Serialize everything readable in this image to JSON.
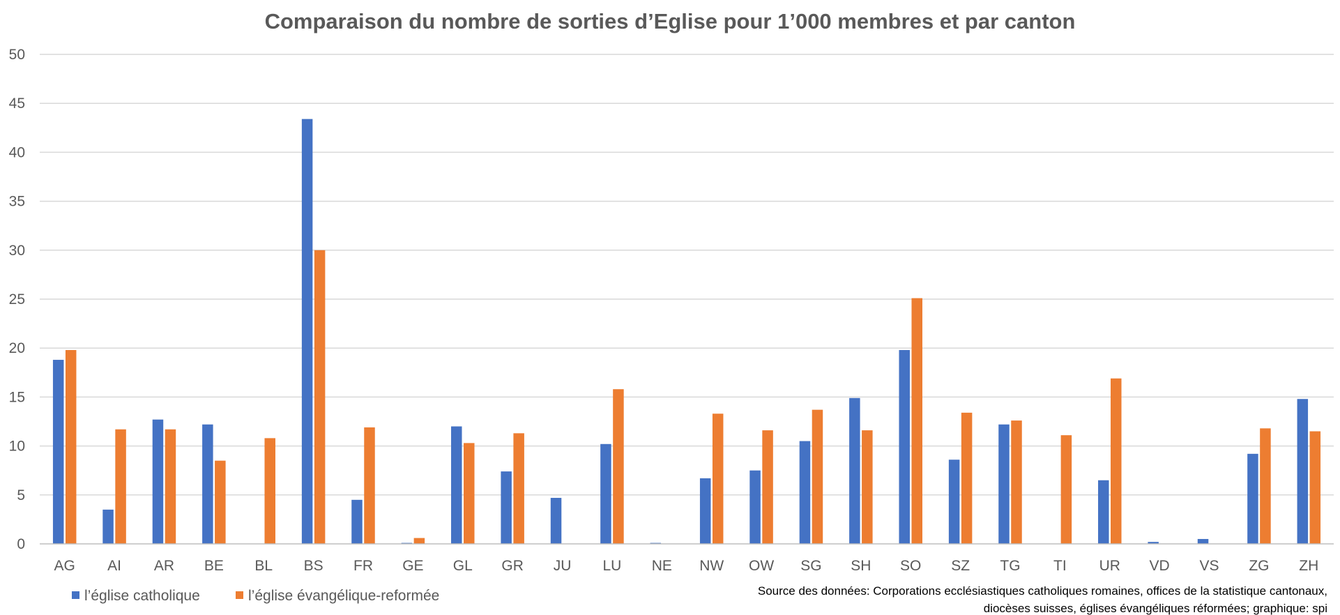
{
  "chart_data": {
    "type": "bar",
    "title": "Comparaison du nombre de sorties d’Eglise pour 1’000 membres et par canton",
    "xlabel": "",
    "ylabel": "",
    "ylim": [
      0,
      50
    ],
    "yticks": [
      0,
      5,
      10,
      15,
      20,
      25,
      30,
      35,
      40,
      45,
      50
    ],
    "grid": true,
    "legend_position": "bottom-left",
    "categories": [
      "AG",
      "AI",
      "AR",
      "BE",
      "BL",
      "BS",
      "FR",
      "GE",
      "GL",
      "GR",
      "JU",
      "LU",
      "NE",
      "NW",
      "OW",
      "SG",
      "SH",
      "SO",
      "SZ",
      "TG",
      "TI",
      "UR",
      "VD",
      "VS",
      "ZG",
      "ZH"
    ],
    "series": [
      {
        "name": "l’église catholique",
        "color": "#4472c4",
        "values": [
          18.8,
          3.5,
          12.7,
          12.2,
          0,
          43.4,
          4.5,
          0.1,
          12.0,
          7.4,
          4.7,
          10.2,
          0.1,
          6.7,
          7.5,
          10.5,
          14.9,
          19.8,
          8.6,
          12.2,
          0,
          6.5,
          0.2,
          0.5,
          9.2,
          14.8
        ]
      },
      {
        "name": "l’église évangélique-reformée",
        "color": "#ed7d31",
        "values": [
          19.8,
          11.7,
          11.7,
          8.5,
          10.8,
          30.0,
          11.9,
          0.6,
          10.3,
          11.3,
          0,
          15.8,
          0,
          13.3,
          11.6,
          13.7,
          11.6,
          25.1,
          13.4,
          12.6,
          11.1,
          16.9,
          0,
          0,
          11.8,
          11.5
        ]
      }
    ],
    "source_lines": [
      "Source des données: Corporations ecclésiastiques catholiques romaines, offices de la statistique cantonaux,",
      "diocèses suisses, églises évangéliques réformées; graphique: spi"
    ]
  }
}
